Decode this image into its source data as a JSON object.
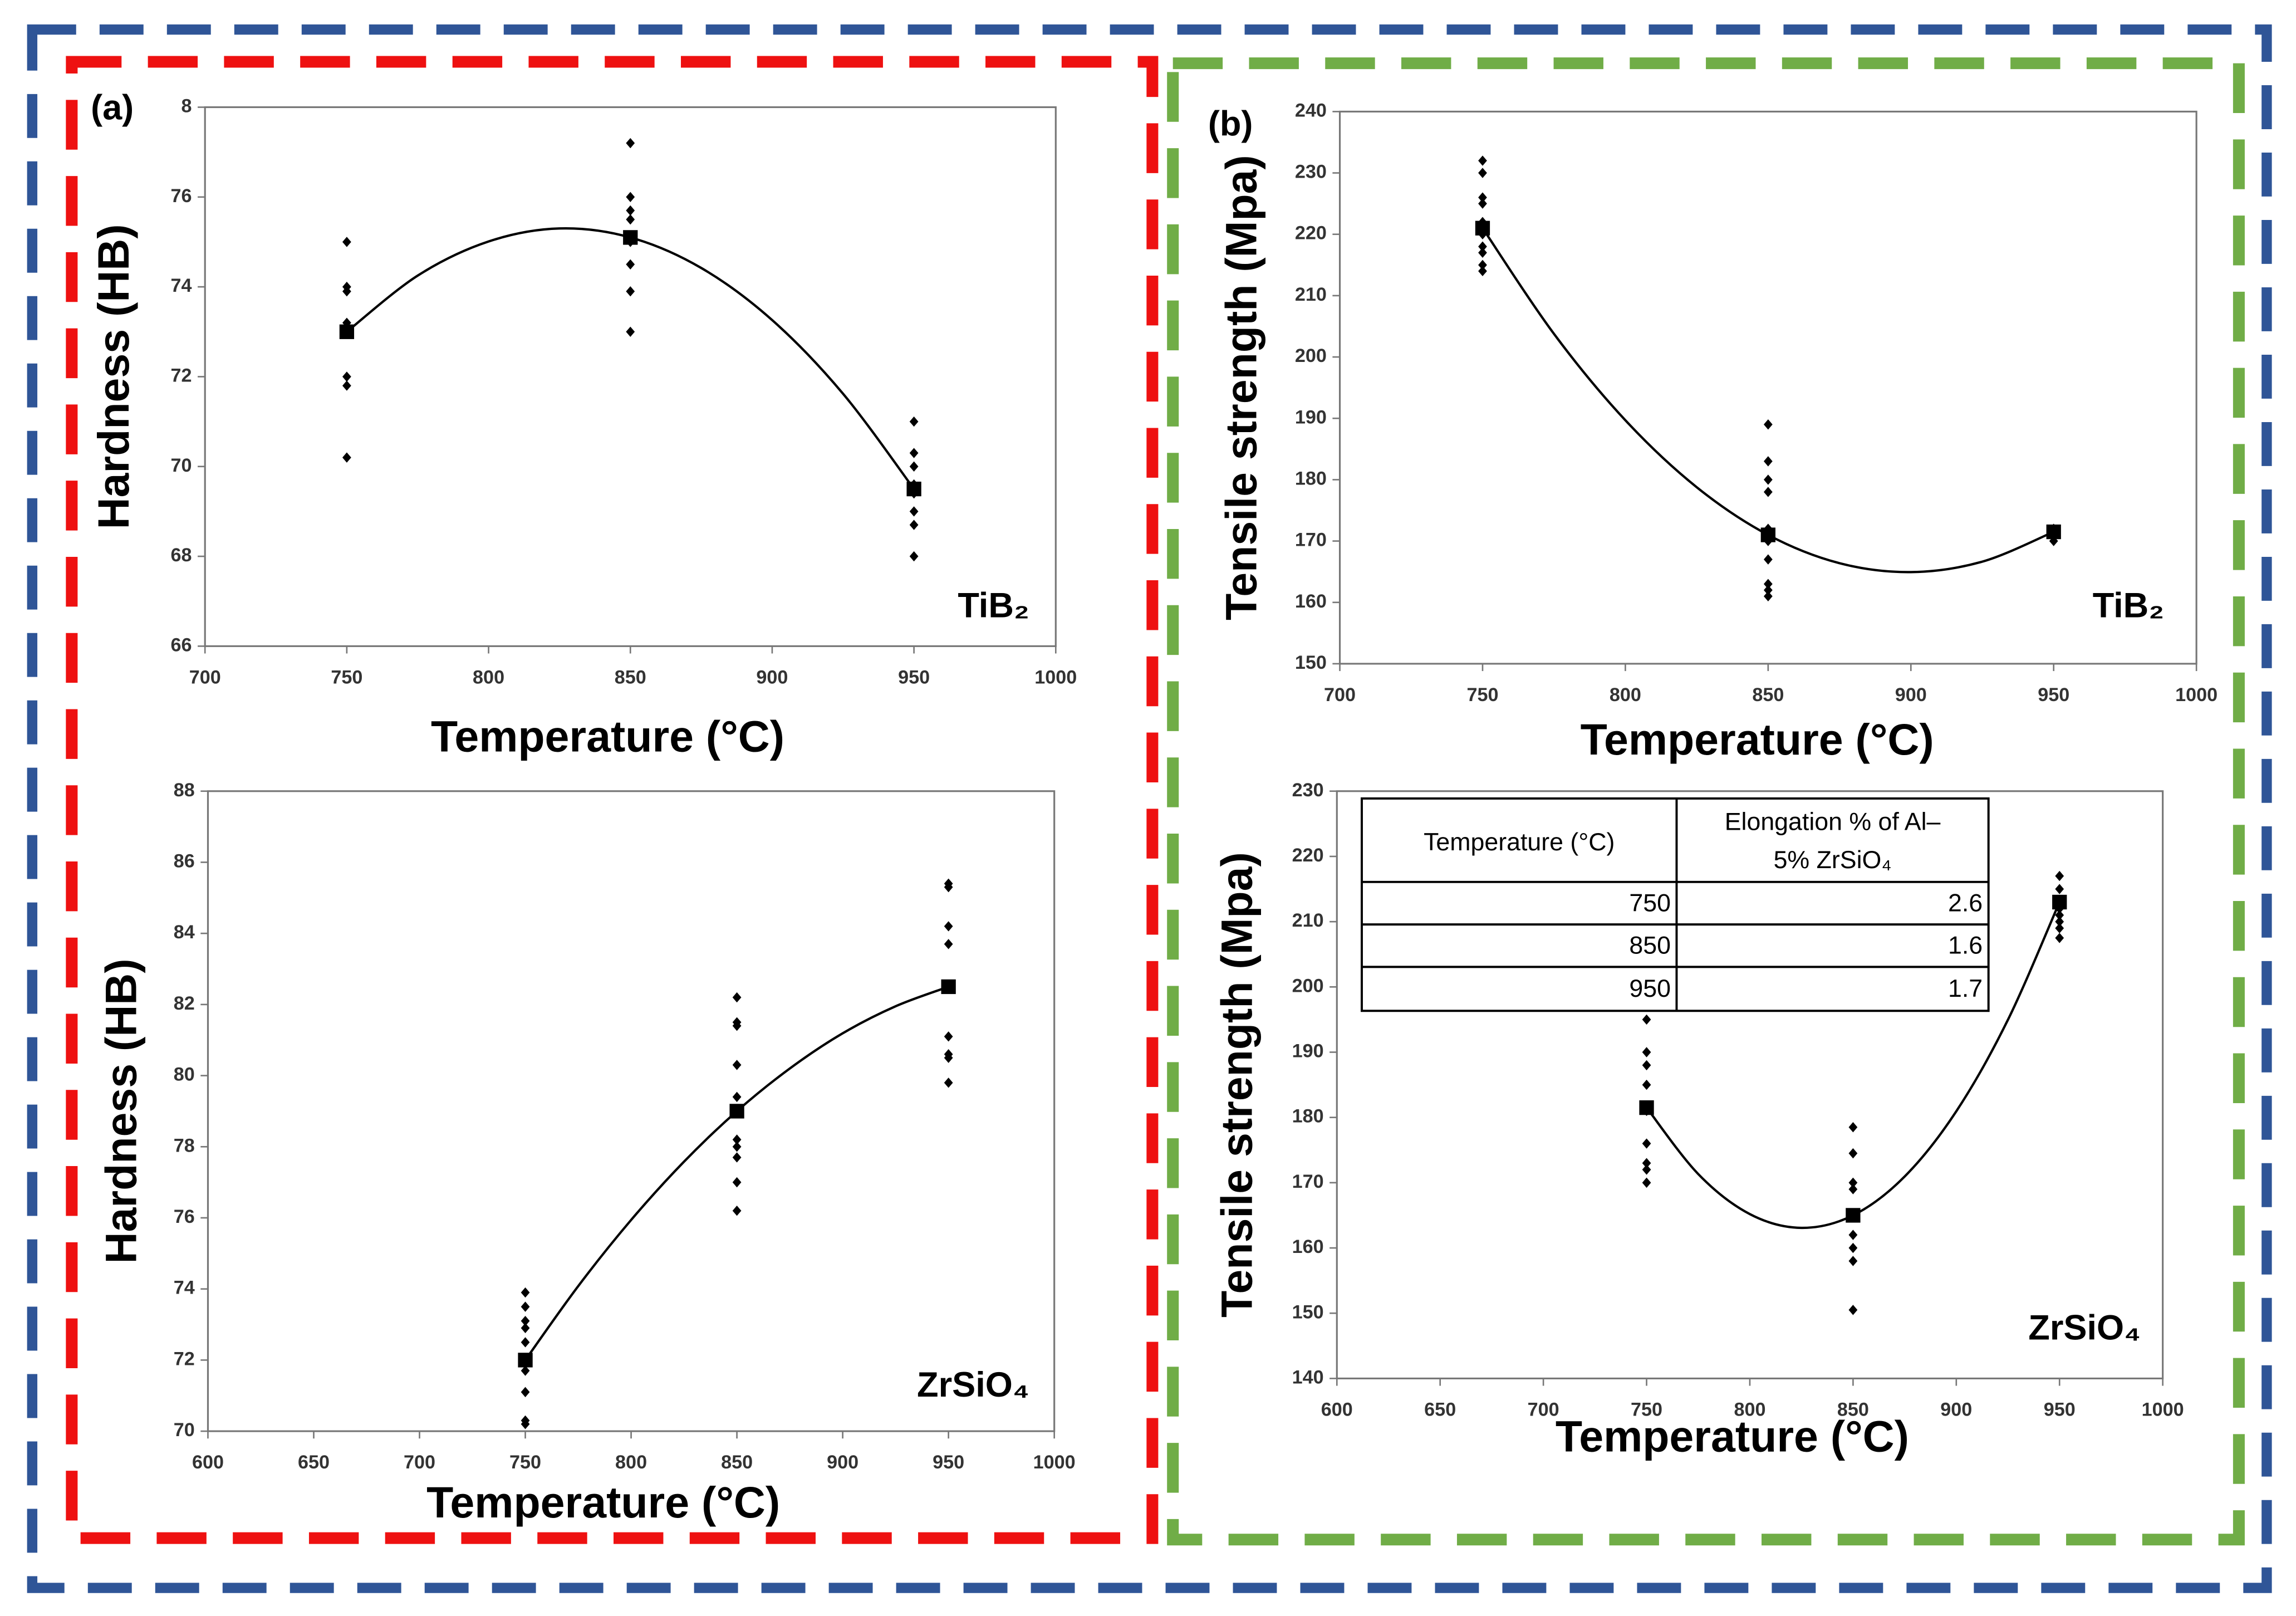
{
  "chart_data": [
    {
      "type": "scatter",
      "label": "(a)",
      "x_label": "Temperature (°C)",
      "y_label": "Hardness (HB)",
      "annotation": "TiB₂",
      "xlim": [
        700,
        1000
      ],
      "xticks": [
        700,
        750,
        800,
        850,
        900,
        950,
        1000
      ],
      "ylim": [
        66,
        78
      ],
      "yticks": [
        66,
        68,
        70,
        72,
        74,
        76,
        {
          "value": 78,
          "label": "8"
        }
      ],
      "series": [
        {
          "marker": "diamond",
          "color": "#000000",
          "x": [
            750,
            750,
            750,
            750,
            750,
            750,
            750,
            750,
            750,
            850,
            850,
            850,
            850,
            850,
            850,
            850,
            850,
            850,
            950,
            950,
            950,
            950,
            950,
            950,
            950,
            950
          ],
          "values": [
            75.0,
            74.0,
            73.9,
            73.2,
            73.1,
            73.0,
            72.0,
            71.8,
            70.2,
            77.2,
            76.0,
            75.7,
            75.5,
            75.1,
            75.0,
            74.5,
            73.9,
            73.0,
            71.0,
            70.3,
            70.0,
            69.6,
            69.4,
            69.0,
            68.7,
            68.0
          ]
        },
        {
          "marker": "square",
          "color": "#000000",
          "x": [
            750,
            850,
            950
          ],
          "values": [
            73.0,
            75.1,
            69.5
          ]
        },
        {
          "marker": "line",
          "color": "#000000",
          "x": [
            750,
            775,
            800,
            825,
            850,
            875,
            900,
            925,
            950
          ],
          "values": [
            73.0,
            74.25,
            75.01,
            75.3,
            75.1,
            74.42,
            73.26,
            71.62,
            69.5
          ]
        }
      ]
    },
    {
      "type": "scatter",
      "label": "(b)",
      "x_label": "Temperature (°C)",
      "y_label": "Tensile strength (Mpa)",
      "annotation": "TiB₂",
      "xlim": [
        700,
        1000
      ],
      "xticks": [
        700,
        750,
        800,
        850,
        900,
        950,
        1000
      ],
      "ylim": [
        150,
        240
      ],
      "yticks": [
        150,
        160,
        170,
        180,
        190,
        200,
        210,
        220,
        230,
        240
      ],
      "series": [
        {
          "marker": "diamond",
          "color": "#000000",
          "x": [
            750,
            750,
            750,
            750,
            750,
            750,
            750,
            750,
            750,
            750,
            750,
            850,
            850,
            850,
            850,
            850,
            850,
            850,
            850,
            850,
            850,
            850,
            950,
            950,
            950
          ],
          "values": [
            232,
            230,
            226,
            225,
            222,
            221,
            220,
            218,
            217,
            215,
            214,
            189,
            183,
            180,
            178,
            172,
            171,
            170,
            167,
            163,
            162,
            161,
            172,
            171,
            170
          ]
        },
        {
          "marker": "square",
          "color": "#000000",
          "x": [
            750,
            850,
            950
          ],
          "values": [
            221,
            171,
            171.5
          ]
        },
        {
          "marker": "line",
          "color": "#000000",
          "x": [
            750,
            775,
            800,
            825,
            850,
            875,
            900,
            925,
            950
          ],
          "values": [
            221,
            203.77,
            189.69,
            178.77,
            171,
            166.39,
            164.94,
            166.64,
            171.5
          ]
        }
      ]
    },
    {
      "type": "scatter",
      "x_label": "Temperature (°C)",
      "y_label": "Hardness (HB)",
      "annotation": "ZrSiO₄",
      "xlim": [
        600,
        1000
      ],
      "xticks": [
        600,
        650,
        700,
        750,
        800,
        850,
        900,
        950,
        1000
      ],
      "ylim": [
        70,
        88
      ],
      "yticks": [
        70,
        72,
        74,
        76,
        78,
        80,
        82,
        84,
        86,
        88
      ],
      "series": [
        {
          "marker": "diamond",
          "color": "#000000",
          "x": [
            750,
            750,
            750,
            750,
            750,
            750,
            750,
            750,
            750,
            750,
            850,
            850,
            850,
            850,
            850,
            850,
            850,
            850,
            850,
            850,
            850,
            950,
            950,
            950,
            950,
            950,
            950,
            950,
            950,
            950
          ],
          "values": [
            73.9,
            73.5,
            73.1,
            72.9,
            72.5,
            72.0,
            71.7,
            71.1,
            70.3,
            70.2,
            82.2,
            81.5,
            81.4,
            80.3,
            79.4,
            79.0,
            78.2,
            78.0,
            77.7,
            77.0,
            76.2,
            85.4,
            85.3,
            84.2,
            83.7,
            82.5,
            81.1,
            80.6,
            80.5,
            79.8
          ]
        },
        {
          "marker": "square",
          "color": "#000000",
          "x": [
            750,
            850,
            950
          ],
          "values": [
            72,
            79,
            82.5
          ]
        },
        {
          "marker": "line",
          "color": "#000000",
          "x": [
            750,
            775,
            800,
            825,
            850,
            875,
            900,
            925,
            950
          ],
          "values": [
            72,
            74.08,
            75.94,
            77.58,
            79,
            80.2,
            81.19,
            81.95,
            82.5
          ]
        }
      ]
    },
    {
      "type": "scatter",
      "x_label": "Temperature (°C)",
      "y_label": "Tensile strength (Mpa)",
      "annotation": "ZrSiO₄",
      "xlim": [
        600,
        1000
      ],
      "xticks": [
        600,
        650,
        700,
        750,
        800,
        850,
        900,
        950,
        1000
      ],
      "ylim": [
        140,
        230
      ],
      "yticks": [
        140,
        150,
        160,
        170,
        180,
        190,
        200,
        210,
        220,
        230
      ],
      "series": [
        {
          "marker": "diamond",
          "color": "#000000",
          "x": [
            750,
            750,
            750,
            750,
            750,
            750,
            750,
            750,
            750,
            850,
            850,
            850,
            850,
            850,
            850,
            850,
            850,
            850,
            950,
            950,
            950,
            950,
            950,
            950,
            950,
            950
          ],
          "values": [
            195,
            190,
            188,
            185,
            181,
            176,
            173,
            172,
            170,
            178.5,
            174.5,
            170,
            169,
            165,
            162,
            160,
            158,
            150.5,
            217,
            215,
            213,
            212,
            211,
            210,
            209,
            207.5
          ]
        },
        {
          "marker": "square",
          "color": "#000000",
          "x": [
            750,
            850,
            950
          ],
          "values": [
            181.5,
            165,
            213
          ]
        },
        {
          "marker": "line",
          "color": "#000000",
          "x": [
            750,
            775,
            800,
            825,
            850,
            875,
            900,
            925,
            950
          ],
          "values": [
            181.5,
            171.33,
            165.19,
            163.08,
            165,
            170.95,
            180.94,
            194.95,
            213
          ]
        }
      ],
      "table": {
        "columns": [
          "Temperature (°C)",
          [
            "Elongation % of Al–",
            "5% ZrSiO₄"
          ]
        ],
        "rows": [
          [
            750,
            2.6
          ],
          [
            850,
            1.6
          ],
          [
            950,
            1.7
          ]
        ]
      }
    }
  ]
}
